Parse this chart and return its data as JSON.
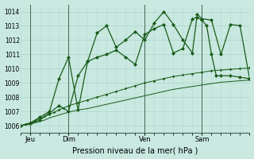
{
  "background_color": "#c8e8e0",
  "grid_color": "#a8d8cc",
  "line_color": "#1a5c1a",
  "title": "Pression niveau de la mer( hPa )",
  "ylim": [
    1005.5,
    1014.5
  ],
  "yticks": [
    1006,
    1007,
    1008,
    1009,
    1010,
    1011,
    1012,
    1013,
    1014
  ],
  "xlim": [
    0,
    192
  ],
  "day_ticks": [
    8,
    40,
    104,
    152
  ],
  "day_labels": [
    "Jeu",
    "Dim",
    "Ven",
    "Sam"
  ],
  "vline_positions": [
    8,
    40,
    104,
    152
  ],
  "s1_x": [
    0,
    4,
    8,
    12,
    16,
    20,
    24,
    28,
    32,
    36,
    40,
    48,
    56,
    64,
    72,
    80,
    88,
    96,
    104,
    112,
    120,
    128,
    136,
    144,
    152,
    160,
    168,
    176,
    184,
    192
  ],
  "s1_y": [
    1006.0,
    1006.05,
    1006.1,
    1006.2,
    1006.3,
    1006.4,
    1006.55,
    1006.65,
    1006.75,
    1006.85,
    1006.95,
    1007.1,
    1007.2,
    1007.35,
    1007.5,
    1007.65,
    1007.8,
    1007.95,
    1008.1,
    1008.25,
    1008.4,
    1008.55,
    1008.65,
    1008.75,
    1008.85,
    1008.95,
    1009.05,
    1009.1,
    1009.15,
    1009.2
  ],
  "s2_x": [
    0,
    4,
    8,
    12,
    16,
    20,
    24,
    28,
    32,
    36,
    40,
    48,
    56,
    64,
    72,
    80,
    88,
    96,
    104,
    112,
    120,
    128,
    136,
    144,
    152,
    160,
    168,
    176,
    184,
    192
  ],
  "s2_y": [
    1006.0,
    1006.1,
    1006.2,
    1006.35,
    1006.5,
    1006.65,
    1006.8,
    1006.95,
    1007.1,
    1007.25,
    1007.4,
    1007.6,
    1007.8,
    1008.0,
    1008.2,
    1008.4,
    1008.6,
    1008.8,
    1009.0,
    1009.15,
    1009.3,
    1009.45,
    1009.55,
    1009.65,
    1009.75,
    1009.85,
    1009.9,
    1009.95,
    1010.0,
    1010.05
  ],
  "s3_x": [
    0,
    8,
    16,
    24,
    32,
    40,
    48,
    56,
    64,
    72,
    80,
    88,
    96,
    104,
    112,
    120,
    128,
    136,
    144,
    148,
    152,
    156,
    160,
    164,
    168,
    176,
    184,
    192
  ],
  "s3_y": [
    1006.0,
    1006.15,
    1006.4,
    1006.9,
    1007.4,
    1007.0,
    1009.5,
    1010.5,
    1010.8,
    1011.0,
    1011.3,
    1010.8,
    1010.3,
    1012.4,
    1012.8,
    1013.1,
    1011.1,
    1011.4,
    1013.5,
    1013.6,
    1013.4,
    1013.0,
    1011.0,
    1009.5,
    1009.5,
    1009.5,
    1009.4,
    1009.3
  ],
  "s4_x": [
    0,
    8,
    16,
    24,
    32,
    40,
    48,
    56,
    64,
    72,
    80,
    88,
    96,
    104,
    112,
    120,
    128,
    136,
    144,
    148,
    152,
    160,
    168,
    176,
    184,
    192
  ],
  "s4_y": [
    1006.0,
    1006.2,
    1006.6,
    1007.0,
    1009.3,
    1010.8,
    1007.1,
    1010.5,
    1012.5,
    1013.0,
    1011.5,
    1012.0,
    1012.6,
    1012.0,
    1013.2,
    1014.0,
    1013.1,
    1012.0,
    1011.1,
    1013.8,
    1013.5,
    1013.4,
    1011.0,
    1013.1,
    1013.0,
    1009.3
  ]
}
